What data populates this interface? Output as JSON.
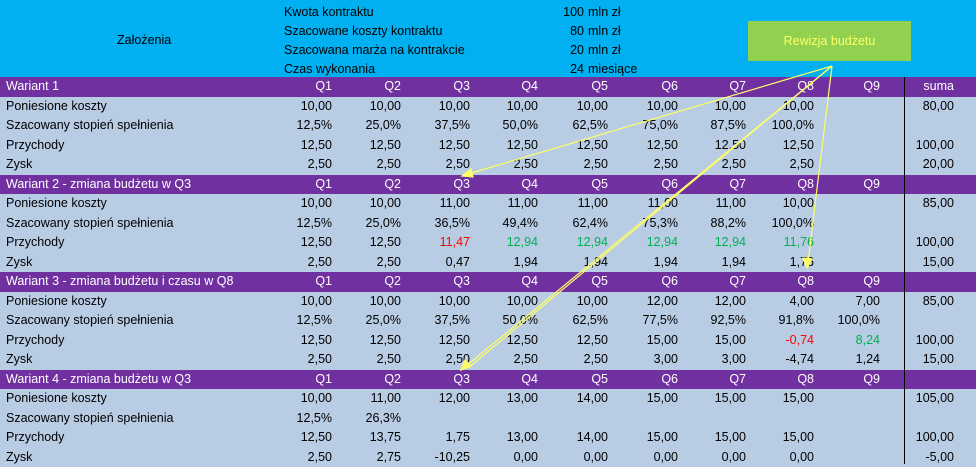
{
  "assumptions": {
    "title": "Założenia",
    "items": [
      {
        "label": "Kwota kontraktu",
        "value": "100",
        "unit": "mln zł"
      },
      {
        "label": "Szacowane koszty kontraktu",
        "value": "80",
        "unit": "mln zł"
      },
      {
        "label": "Szacowana marża na kontrakcie",
        "value": "20",
        "unit": "mln zł"
      },
      {
        "label": "Czas wykonania",
        "value": "24",
        "unit": "miesiące"
      }
    ]
  },
  "revision_button": "Rewizja budżetu",
  "colors": {
    "header": "#00b0f0",
    "section": "#7030a0",
    "body": "#b8cce4",
    "button": "#92d050",
    "button_text": "#ffff66",
    "negative": "#ff0000",
    "positive": "#00b050",
    "arrow": "#ffff66"
  },
  "variants": [
    {
      "title": "Wariant 1",
      "headers": [
        "Q1",
        "Q2",
        "Q3",
        "Q4",
        "Q5",
        "Q6",
        "Q7",
        "Q8",
        "Q9",
        "suma"
      ],
      "rows": [
        {
          "label": "Poniesione koszty",
          "values": [
            "10,00",
            "10,00",
            "10,00",
            "10,00",
            "10,00",
            "10,00",
            "10,00",
            "10,00",
            "",
            "80,00"
          ]
        },
        {
          "label": "Szacowany stopień spełnienia",
          "values": [
            "12,5%",
            "25,0%",
            "37,5%",
            "50,0%",
            "62,5%",
            "75,0%",
            "87,5%",
            "100,0%",
            "",
            ""
          ]
        },
        {
          "label": "Przychody",
          "values": [
            "12,50",
            "12,50",
            "12,50",
            "12,50",
            "12,50",
            "12,50",
            "12,50",
            "12,50",
            "",
            "100,00"
          ]
        },
        {
          "label": "Zysk",
          "values": [
            "2,50",
            "2,50",
            "2,50",
            "2,50",
            "2,50",
            "2,50",
            "2,50",
            "2,50",
            "",
            "20,00"
          ]
        }
      ]
    },
    {
      "title": "Wariant 2 - zmiana budżetu w Q3",
      "headers": [
        "Q1",
        "Q2",
        "Q3",
        "Q4",
        "Q5",
        "Q6",
        "Q7",
        "Q8",
        "Q9",
        ""
      ],
      "rows": [
        {
          "label": "Poniesione koszty",
          "values": [
            "10,00",
            "10,00",
            "11,00",
            "11,00",
            "11,00",
            "11,00",
            "11,00",
            "10,00",
            "",
            "85,00"
          ]
        },
        {
          "label": "Szacowany stopień spełnienia",
          "values": [
            "12,5%",
            "25,0%",
            "36,5%",
            "49,4%",
            "62,4%",
            "75,3%",
            "88,2%",
            "100,0%",
            "",
            ""
          ]
        },
        {
          "label": "Przychody",
          "values": [
            "12,50",
            "12,50",
            "11,47",
            "12,94",
            "12,94",
            "12,94",
            "12,94",
            "11,76",
            "",
            "100,00"
          ],
          "colors": [
            "",
            "",
            "red",
            "green",
            "green",
            "green",
            "green",
            "green",
            "",
            ""
          ]
        },
        {
          "label": "Zysk",
          "values": [
            "2,50",
            "2,50",
            "0,47",
            "1,94",
            "1,94",
            "1,94",
            "1,94",
            "1,76",
            "",
            "15,00"
          ]
        }
      ]
    },
    {
      "title": "Wariant 3 - zmiana budżetu i czasu w Q8",
      "headers": [
        "Q1",
        "Q2",
        "Q3",
        "Q4",
        "Q5",
        "Q6",
        "Q7",
        "Q8",
        "Q9",
        ""
      ],
      "rows": [
        {
          "label": "Poniesione koszty",
          "values": [
            "10,00",
            "10,00",
            "10,00",
            "10,00",
            "10,00",
            "12,00",
            "12,00",
            "4,00",
            "7,00",
            "85,00"
          ]
        },
        {
          "label": "Szacowany stopień spełnienia",
          "values": [
            "12,5%",
            "25,0%",
            "37,5%",
            "50,0%",
            "62,5%",
            "77,5%",
            "92,5%",
            "91,8%",
            "100,0%",
            ""
          ]
        },
        {
          "label": "Przychody",
          "values": [
            "12,50",
            "12,50",
            "12,50",
            "12,50",
            "12,50",
            "15,00",
            "15,00",
            "-0,74",
            "8,24",
            "100,00"
          ],
          "colors": [
            "",
            "",
            "",
            "",
            "",
            "",
            "",
            "red",
            "green",
            ""
          ]
        },
        {
          "label": "Zysk",
          "values": [
            "2,50",
            "2,50",
            "2,50",
            "2,50",
            "2,50",
            "3,00",
            "3,00",
            "-4,74",
            "1,24",
            "15,00"
          ]
        }
      ]
    },
    {
      "title": "Wariant 4 - zmiana budżetu w Q3",
      "headers": [
        "Q1",
        "Q2",
        "Q3",
        "Q4",
        "Q5",
        "Q6",
        "Q7",
        "Q8",
        "Q9",
        ""
      ],
      "rows": [
        {
          "label": "Poniesione koszty",
          "values": [
            "10,00",
            "11,00",
            "12,00",
            "13,00",
            "14,00",
            "15,00",
            "15,00",
            "15,00",
            "",
            "105,00"
          ]
        },
        {
          "label": "Szacowany stopień spełnienia",
          "values": [
            "12,5%",
            "26,3%",
            "",
            "",
            "",
            "",
            "",
            "",
            "",
            ""
          ]
        },
        {
          "label": "Przychody",
          "values": [
            "12,50",
            "13,75",
            "1,75",
            "13,00",
            "14,00",
            "15,00",
            "15,00",
            "15,00",
            "",
            "100,00"
          ]
        },
        {
          "label": "Zysk",
          "values": [
            "2,50",
            "2,75",
            "-10,25",
            "0,00",
            "0,00",
            "0,00",
            "0,00",
            "0,00",
            "",
            "-5,00"
          ]
        }
      ]
    }
  ]
}
